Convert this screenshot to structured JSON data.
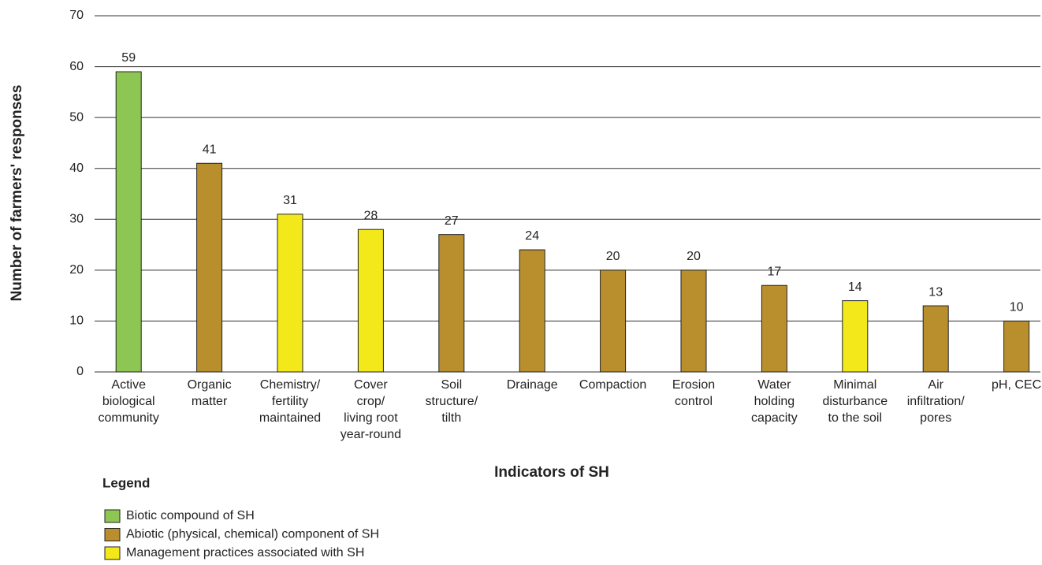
{
  "chart_data": {
    "type": "bar",
    "y_label": "Number of farmers' responses",
    "x_label": "Indicators of SH",
    "categories": [
      [
        "Active",
        "biological",
        "community"
      ],
      [
        "Organic",
        "matter"
      ],
      [
        "Chemistry/",
        "fertility",
        "maintained"
      ],
      [
        "Cover",
        "crop/",
        "living root",
        "year-round"
      ],
      [
        "Soil",
        "structure/",
        "tilth"
      ],
      [
        "Drainage"
      ],
      [
        "Compaction"
      ],
      [
        "Erosion",
        "control"
      ],
      [
        "Water",
        "holding",
        "capacity"
      ],
      [
        "Minimal",
        "disturbance",
        "to the soil"
      ],
      [
        "Air",
        "infiltration/",
        "pores"
      ],
      [
        "pH, CEC"
      ]
    ],
    "values": [
      59,
      41,
      31,
      28,
      27,
      24,
      20,
      20,
      17,
      14,
      13,
      10
    ],
    "colors": [
      "#8dc653",
      "#b98f2e",
      "#f2e81a",
      "#f2e81a",
      "#b98f2e",
      "#b98f2e",
      "#b98f2e",
      "#b98f2e",
      "#b98f2e",
      "#f2e81a",
      "#b98f2e",
      "#b98f2e"
    ],
    "ylim": [
      0,
      70
    ],
    "yticks": [
      0,
      10,
      20,
      30,
      40,
      50,
      60,
      70
    ],
    "grid": true,
    "legend_title": "Legend",
    "legend": [
      {
        "name": "Biotic compound of SH",
        "color": "#8dc653"
      },
      {
        "name": "Abiotic (physical, chemical) component of SH",
        "color": "#b98f2e"
      },
      {
        "name": "Management practices associated with SH",
        "color": "#f2e81a"
      }
    ]
  }
}
